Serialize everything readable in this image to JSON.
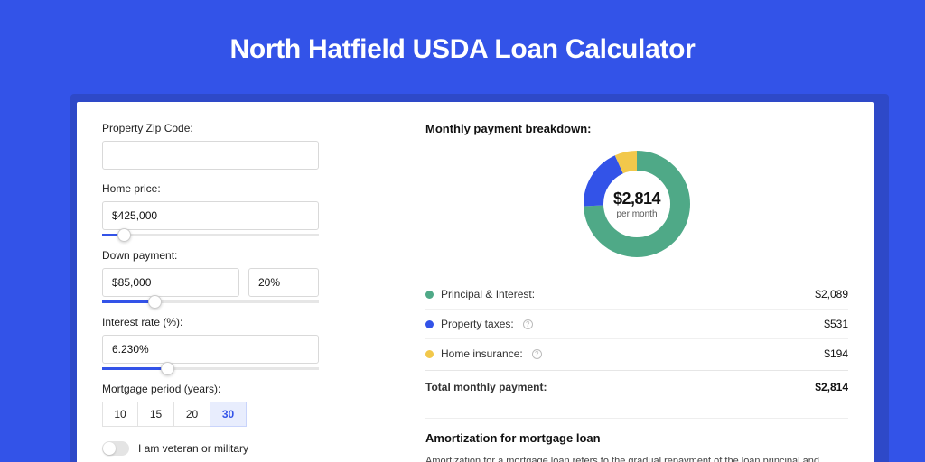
{
  "page": {
    "title": "North Hatfield USDA Loan Calculator",
    "bg_color": "#3353e8",
    "shadow_color": "#2e49c8",
    "card_bg": "#ffffff"
  },
  "form": {
    "zip": {
      "label": "Property Zip Code:",
      "value": ""
    },
    "home_price": {
      "label": "Home price:",
      "value": "$425,000",
      "slider_pct": 10
    },
    "down_payment": {
      "label": "Down payment:",
      "amount": "$85,000",
      "percent": "20%",
      "slider_pct": 24
    },
    "interest_rate": {
      "label": "Interest rate (%):",
      "value": "6.230%",
      "slider_pct": 30
    },
    "period": {
      "label": "Mortgage period (years):",
      "options": [
        "10",
        "15",
        "20",
        "30"
      ],
      "selected": "30"
    },
    "veteran": {
      "label": "I am veteran or military",
      "on": false
    }
  },
  "breakdown": {
    "title": "Monthly payment breakdown:",
    "donut": {
      "value": "$2,814",
      "sub": "per month",
      "slices": [
        {
          "key": "principal_interest",
          "pct": 74.2,
          "color": "#4fa987"
        },
        {
          "key": "property_taxes",
          "pct": 18.9,
          "color": "#3353e8"
        },
        {
          "key": "home_insurance",
          "pct": 6.9,
          "color": "#f2c84b"
        }
      ],
      "stroke_width": 22,
      "bg_color": "#ffffff"
    },
    "rows": [
      {
        "color": "#4fa987",
        "label": "Principal & Interest:",
        "info": false,
        "value": "$2,089"
      },
      {
        "color": "#3353e8",
        "label": "Property taxes:",
        "info": true,
        "value": "$531"
      },
      {
        "color": "#f2c84b",
        "label": "Home insurance:",
        "info": true,
        "value": "$194"
      }
    ],
    "total": {
      "label": "Total monthly payment:",
      "value": "$2,814"
    }
  },
  "amortization": {
    "title": "Amortization for mortgage loan",
    "body": "Amortization for a mortgage loan refers to the gradual repayment of the loan principal and interest over a specified"
  }
}
